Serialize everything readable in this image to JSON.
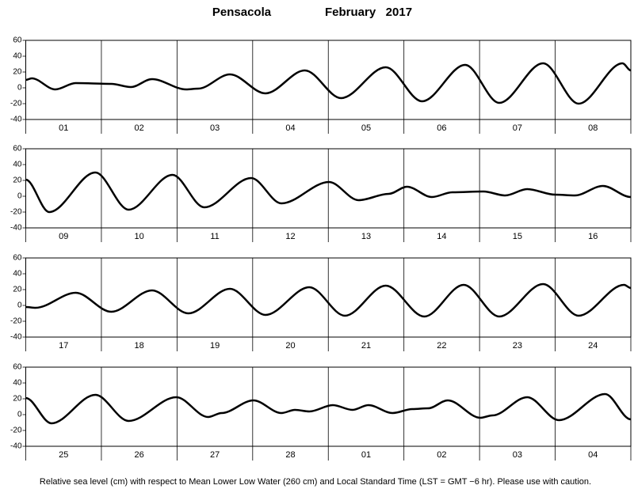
{
  "station": "Pensacola",
  "period": "February   2017",
  "caption": "Relative sea level (cm) with respect to Mean Lower Low Water (260 cm) and Local Standard Time (LST = GMT −6 hr). Please use with caution.",
  "chart_data": [
    {
      "type": "line",
      "categories": [
        "01",
        "02",
        "03",
        "04",
        "05",
        "06",
        "07",
        "08"
      ],
      "x": [
        0,
        0.08,
        0.39,
        0.66,
        1.13,
        1.39,
        1.67,
        2.12,
        2.28,
        2.7,
        3.17,
        3.69,
        4.17,
        4.76,
        5.24,
        5.81,
        6.26,
        6.84,
        7.31,
        7.89,
        8
      ],
      "values": [
        10,
        12,
        -2,
        6,
        5,
        1,
        11,
        -2,
        -1,
        17,
        -7,
        22,
        -13,
        26,
        -17,
        29,
        -19,
        31,
        -20,
        31,
        22
      ],
      "color": "#000000",
      "xlim": [
        0,
        8
      ],
      "ylim": [
        -40,
        60
      ],
      "yticks": [
        -40,
        -20,
        0,
        20,
        40,
        60
      ]
    },
    {
      "type": "line",
      "categories": [
        "09",
        "10",
        "11",
        "12",
        "13",
        "14",
        "15",
        "16"
      ],
      "x": [
        0,
        0.31,
        0.92,
        1.36,
        1.94,
        2.36,
        2.98,
        3.38,
        4.01,
        4.4,
        4.8,
        5.04,
        5.37,
        5.64,
        6.05,
        6.34,
        6.63,
        7.0,
        7.26,
        7.63,
        8
      ],
      "values": [
        21,
        -20,
        30,
        -17,
        27,
        -14,
        23,
        -9,
        18,
        -5,
        3,
        12,
        -1,
        5,
        6,
        1,
        9,
        2,
        1,
        13,
        -1
      ],
      "color": "#000000",
      "xlim": [
        0,
        8
      ],
      "ylim": [
        -40,
        60
      ],
      "yticks": [
        -40,
        -20,
        0,
        20,
        40,
        60
      ]
    },
    {
      "type": "line",
      "categories": [
        "17",
        "18",
        "19",
        "20",
        "21",
        "22",
        "23",
        "24"
      ],
      "x": [
        0,
        0.13,
        0.66,
        1.13,
        1.67,
        2.15,
        2.7,
        3.17,
        3.75,
        4.22,
        4.76,
        5.27,
        5.79,
        6.26,
        6.84,
        7.31,
        7.91,
        8
      ],
      "values": [
        -2,
        -3,
        16,
        -8,
        19,
        -10,
        21,
        -12,
        23,
        -13,
        25,
        -14,
        26,
        -14,
        27,
        -13,
        26,
        22
      ],
      "color": "#000000",
      "xlim": [
        0,
        8
      ],
      "ylim": [
        -40,
        60
      ],
      "yticks": [
        -40,
        -20,
        0,
        20,
        40,
        60
      ]
    },
    {
      "type": "line",
      "categories": [
        "25",
        "26",
        "27",
        "28",
        "01",
        "02",
        "03",
        "04"
      ],
      "x": [
        0,
        0.34,
        0.92,
        1.36,
        1.99,
        2.41,
        2.59,
        3.01,
        3.38,
        3.56,
        3.75,
        4.06,
        4.32,
        4.53,
        4.85,
        5.11,
        5.32,
        5.58,
        6.01,
        6.17,
        6.63,
        7.05,
        7.66,
        8
      ],
      "values": [
        21,
        -11,
        25,
        -8,
        22,
        -3,
        2,
        18,
        2,
        6,
        4,
        12,
        6,
        12,
        2,
        7,
        8,
        18,
        -4,
        -1,
        22,
        -7,
        26,
        -6
      ],
      "color": "#000000",
      "xlim": [
        0,
        8
      ],
      "ylim": [
        -40,
        60
      ],
      "yticks": [
        -40,
        -20,
        0,
        20,
        40,
        60
      ]
    }
  ]
}
